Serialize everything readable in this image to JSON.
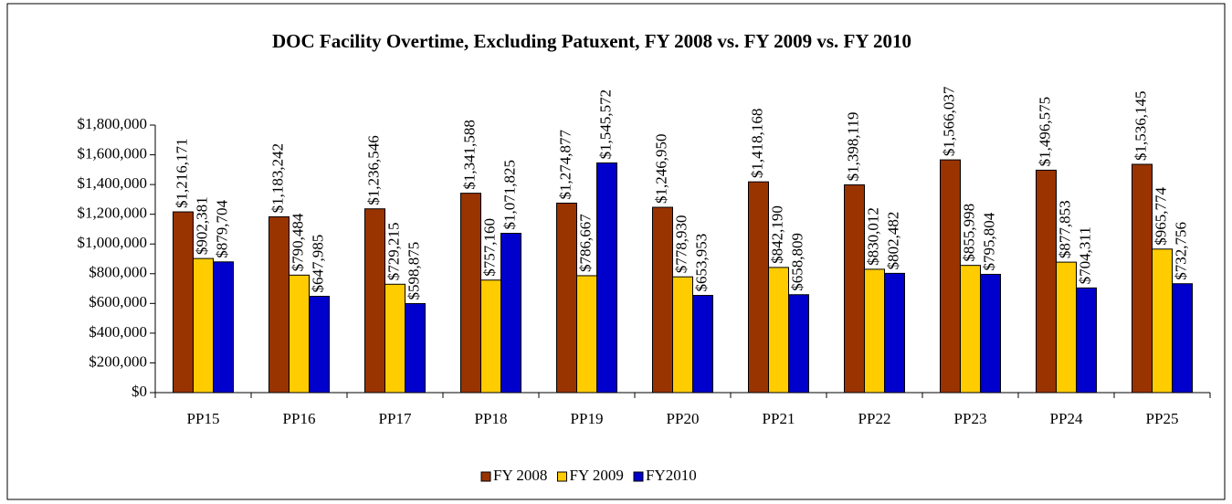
{
  "chart_data": {
    "type": "bar",
    "title": "DOC Facility Overtime, Excluding Patuxent, FY 2008 vs. FY 2009 vs. FY 2010",
    "categories": [
      "PP15",
      "PP16",
      "PP17",
      "PP18",
      "PP19",
      "PP20",
      "PP21",
      "PP22",
      "PP23",
      "PP24",
      "PP25"
    ],
    "series": [
      {
        "name": "FY 2008",
        "color": "#993300",
        "values": [
          1216171,
          1183242,
          1236546,
          1341588,
          1274877,
          1246950,
          1418168,
          1398119,
          1566037,
          1496575,
          1536145
        ],
        "value_labels": [
          "$1,216,171",
          "$1,183,242",
          "$1,236,546",
          "$1,341,588",
          "$1,274,877",
          "$1,246,950",
          "$1,418,168",
          "$1,398,119",
          "$1,566,037",
          "$1,496,575",
          "$1,536,145"
        ]
      },
      {
        "name": "FY 2009",
        "color": "#ffcc00",
        "values": [
          902381,
          790484,
          729215,
          757160,
          786667,
          778930,
          842190,
          830012,
          855998,
          877853,
          965774
        ],
        "value_labels": [
          "$902,381",
          "$790,484",
          "$729,215",
          "$757,160",
          "$786,667",
          "$778,930",
          "$842,190",
          "$830,012",
          "$855,998",
          "$877,853",
          "$965,774"
        ]
      },
      {
        "name": "FY2010",
        "color": "#0000cc",
        "values": [
          879704,
          647985,
          598875,
          1071825,
          1545572,
          653953,
          658809,
          802482,
          795804,
          704311,
          732756
        ],
        "value_labels": [
          "$879,704",
          "$647,985",
          "$598,875",
          "$1,071,825",
          "$1,545,572",
          "$653,953",
          "$658,809",
          "$802,482",
          "$795,804",
          "$704,311",
          "$732,756"
        ]
      }
    ],
    "ylim": [
      0,
      1800000
    ],
    "yticks": [
      {
        "value": 0,
        "label": "$0"
      },
      {
        "value": 200000,
        "label": "$200,000"
      },
      {
        "value": 400000,
        "label": "$400,000"
      },
      {
        "value": 600000,
        "label": "$600,000"
      },
      {
        "value": 800000,
        "label": "$800,000"
      },
      {
        "value": 1000000,
        "label": "$1,000,000"
      },
      {
        "value": 1200000,
        "label": "$1,200,000"
      },
      {
        "value": 1400000,
        "label": "$1,400,000"
      },
      {
        "value": 1600000,
        "label": "$1,600,000"
      },
      {
        "value": 1800000,
        "label": "$1,800,000"
      }
    ],
    "legend": "bottom"
  }
}
